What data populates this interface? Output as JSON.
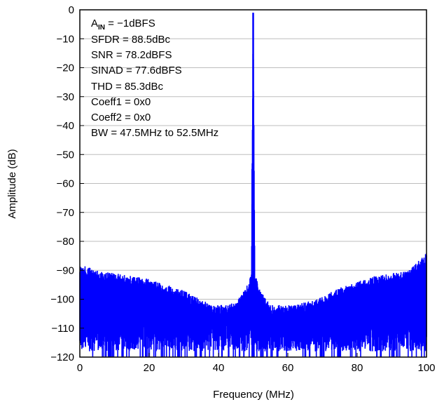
{
  "chart_data": {
    "type": "line",
    "xlabel": "Frequency (MHz)",
    "ylabel": "Amplitude (dB)",
    "xlim": [
      0,
      100
    ],
    "ylim": [
      -120,
      0
    ],
    "xticks": [
      0,
      20,
      40,
      60,
      80,
      100
    ],
    "yticks": [
      0,
      -10,
      -20,
      -30,
      -40,
      -50,
      -60,
      -70,
      -80,
      -90,
      -100,
      -110,
      -120
    ],
    "grid": true,
    "line_color": "#0000ff",
    "annotations": {
      "ain_prefix": "A",
      "ain_sub": "IN",
      "ain_value": " =  −1dBFS",
      "sfdr": "SFDR = 88.5dBc",
      "snr": "SNR = 78.2dBFS",
      "sinad": "SINAD = 77.6dBFS",
      "thd": "THD = 85.3dBc",
      "coeff1": "Coeff1 = 0x0",
      "coeff2": "Coeff2 = 0x0",
      "bw": "BW = 47.5MHz to 52.5MHz"
    },
    "series": [
      {
        "x": [
          0,
          5,
          10,
          15,
          20,
          25,
          30,
          35,
          38,
          42,
          45,
          48,
          49.5,
          50,
          50.5,
          52,
          55,
          58,
          62,
          65,
          70,
          75,
          80,
          85,
          90,
          95,
          100
        ],
        "upper_envelope": [
          -88,
          -90,
          -91,
          -92,
          -93,
          -95,
          -97,
          -100,
          -102,
          -102,
          -101,
          -96,
          -91,
          -1,
          -91,
          -97,
          -102,
          -102,
          -102,
          -101,
          -99,
          -96,
          -94,
          -92,
          -91,
          -90,
          -84
        ],
        "lower_envelope": [
          -120,
          -120,
          -120,
          -120,
          -120,
          -120,
          -120,
          -120,
          -120,
          -120,
          -120,
          -120,
          -120,
          -120,
          -120,
          -120,
          -120,
          -120,
          -120,
          -120,
          -120,
          -120,
          -120,
          -120,
          -120,
          -120,
          -120
        ],
        "peak": {
          "x": 50,
          "y": -1
        }
      }
    ]
  }
}
